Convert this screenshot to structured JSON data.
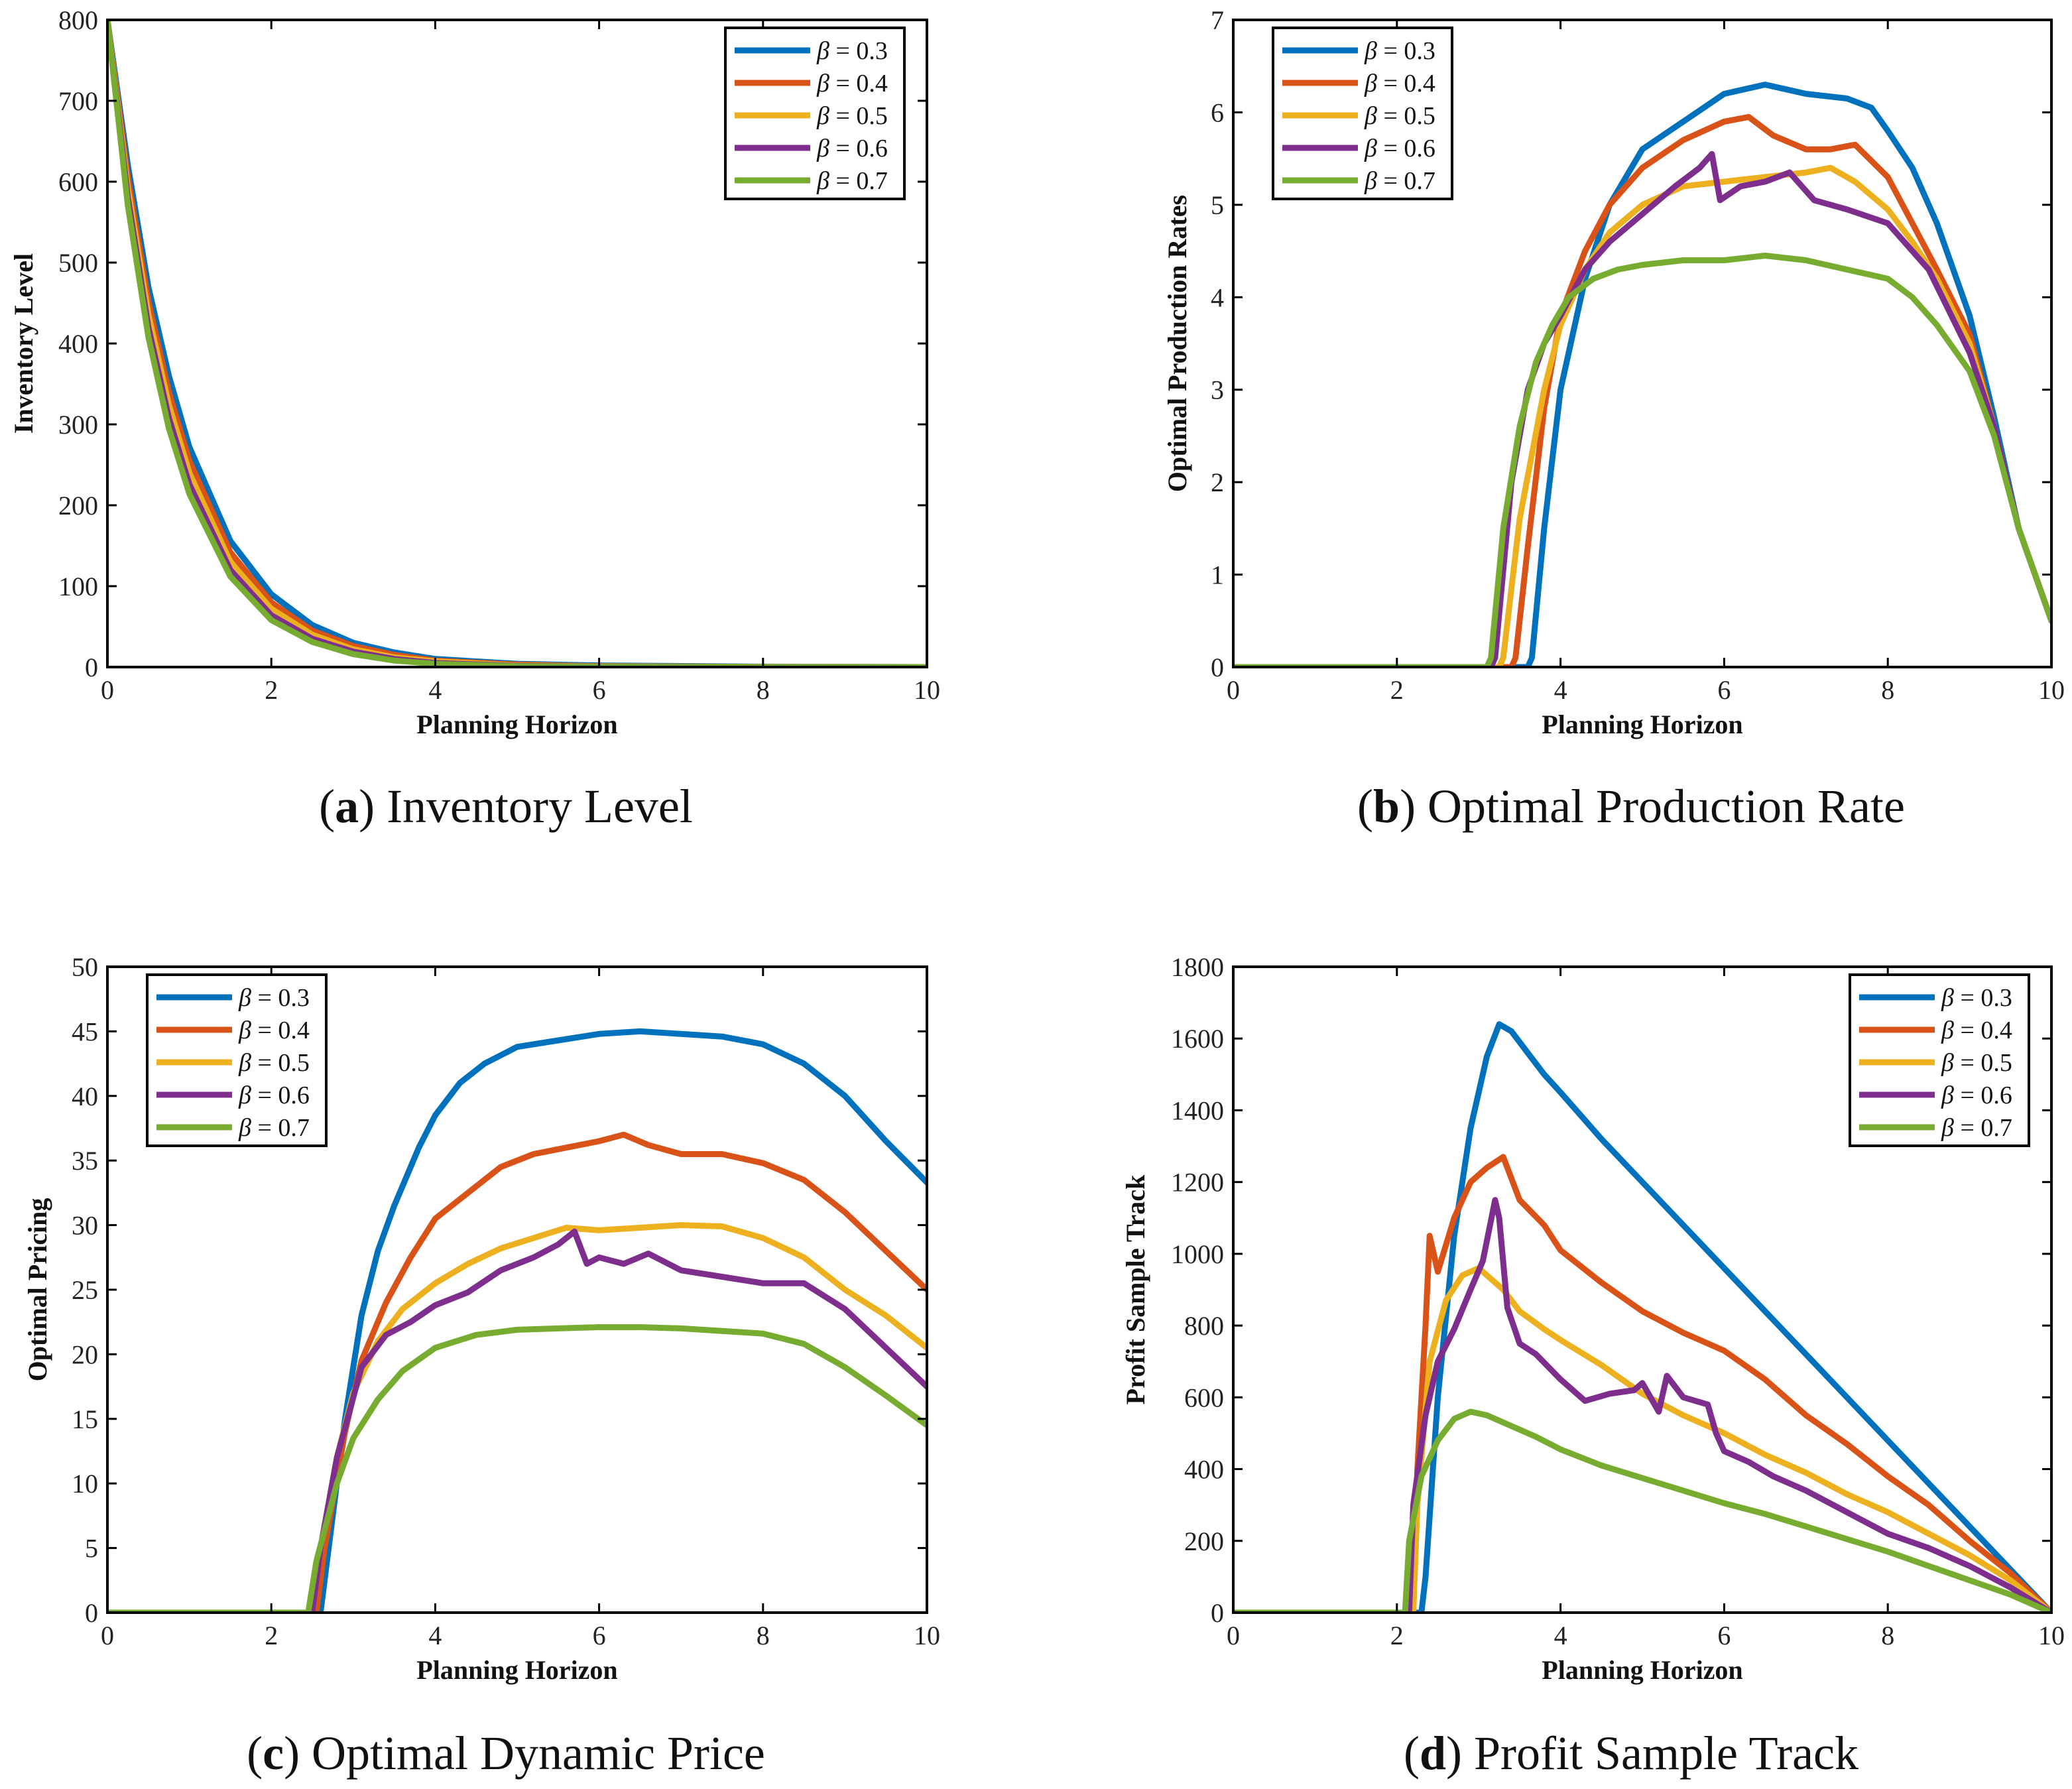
{
  "figure": {
    "legend_labels": [
      "β = 0.3",
      "β = 0.4",
      "β = 0.5",
      "β = 0.6",
      "β = 0.7"
    ],
    "legend_symbol": "β",
    "series_colors": [
      "#0072BD",
      "#D95319",
      "#EDB120",
      "#7E2F8E",
      "#77AC30"
    ]
  },
  "chart_data": [
    {
      "id": "a",
      "type": "line",
      "caption_letter": "a",
      "caption_text": "Inventory Level",
      "xlabel": "Planning Horizon",
      "ylabel": "Inventory Level",
      "xlim": [
        0,
        10
      ],
      "ylim": [
        0,
        800
      ],
      "xticks": [
        0,
        2,
        4,
        6,
        8,
        10
      ],
      "yticks": [
        0,
        100,
        200,
        300,
        400,
        500,
        600,
        700,
        800
      ],
      "legend_position": "top-right",
      "series": [
        {
          "name": "β = 0.3",
          "x": [
            0,
            0.25,
            0.5,
            0.75,
            1,
            1.5,
            2,
            2.5,
            3,
            3.5,
            4,
            5,
            6,
            8,
            10
          ],
          "y": [
            800,
            620,
            470,
            360,
            272,
            156,
            90,
            52,
            30,
            18,
            10,
            4,
            2,
            0.5,
            0
          ]
        },
        {
          "name": "β = 0.4",
          "x": [
            0,
            0.25,
            0.5,
            0.75,
            1,
            1.5,
            2,
            2.5,
            3,
            3.5,
            4,
            5,
            6,
            8,
            10
          ],
          "y": [
            800,
            605,
            452,
            340,
            255,
            142,
            80,
            45,
            26,
            15,
            8,
            3,
            1,
            0.3,
            0
          ]
        },
        {
          "name": "β = 0.5",
          "x": [
            0,
            0.25,
            0.5,
            0.75,
            1,
            1.5,
            2,
            2.5,
            3,
            3.5,
            4,
            5,
            6,
            8,
            10
          ],
          "y": [
            800,
            592,
            436,
            324,
            240,
            130,
            72,
            40,
            22,
            12,
            7,
            2,
            1,
            0.2,
            0
          ]
        },
        {
          "name": "β = 0.6",
          "x": [
            0,
            0.25,
            0.5,
            0.75,
            1,
            1.5,
            2,
            2.5,
            3,
            3.5,
            4,
            5,
            6,
            8,
            10
          ],
          "y": [
            800,
            580,
            420,
            308,
            226,
            120,
            64,
            35,
            19,
            10,
            5,
            1.5,
            0.5,
            0.1,
            0
          ]
        },
        {
          "name": "β = 0.7",
          "x": [
            0,
            0.25,
            0.5,
            0.75,
            1,
            1.5,
            2,
            2.5,
            3,
            3.5,
            4,
            5,
            6,
            8,
            10
          ],
          "y": [
            800,
            570,
            408,
            295,
            214,
            112,
            58,
            31,
            16,
            8,
            4,
            1,
            0.3,
            0.1,
            0
          ]
        }
      ]
    },
    {
      "id": "b",
      "type": "line",
      "caption_letter": "b",
      "caption_text": "Optimal Production Rate",
      "xlabel": "Planning Horizon",
      "ylabel": "Optimal Production Rates",
      "xlim": [
        0,
        10
      ],
      "ylim": [
        0,
        7
      ],
      "xticks": [
        0,
        2,
        4,
        6,
        8,
        10
      ],
      "yticks": [
        0,
        1,
        2,
        3,
        4,
        5,
        6,
        7
      ],
      "legend_position": "top-left",
      "series": [
        {
          "name": "β = 0.3",
          "x": [
            0,
            3.6,
            3.65,
            3.8,
            4.0,
            4.3,
            4.6,
            5.0,
            5.5,
            6.0,
            6.5,
            7.0,
            7.5,
            7.8,
            8.0,
            8.3,
            8.6,
            9.0,
            9.3,
            9.6,
            10.0
          ],
          "y": [
            0,
            0,
            0.1,
            1.5,
            3.0,
            4.2,
            5.0,
            5.6,
            5.9,
            6.2,
            6.3,
            6.2,
            6.15,
            6.05,
            5.8,
            5.4,
            4.8,
            3.8,
            2.7,
            1.5,
            0.5
          ]
        },
        {
          "name": "β = 0.4",
          "x": [
            0,
            3.4,
            3.45,
            3.6,
            3.8,
            4.0,
            4.3,
            4.6,
            5.0,
            5.5,
            6.0,
            6.3,
            6.6,
            7.0,
            7.3,
            7.6,
            8.0,
            8.3,
            8.6,
            9.0,
            9.3,
            9.6,
            10.0
          ],
          "y": [
            0,
            0,
            0.1,
            1.3,
            2.8,
            3.8,
            4.5,
            5.0,
            5.4,
            5.7,
            5.9,
            5.95,
            5.75,
            5.6,
            5.6,
            5.65,
            5.3,
            4.8,
            4.3,
            3.6,
            2.6,
            1.5,
            0.5
          ]
        },
        {
          "name": "β = 0.5",
          "x": [
            0,
            3.25,
            3.3,
            3.5,
            3.8,
            4.0,
            4.3,
            4.6,
            5.0,
            5.5,
            6.0,
            6.5,
            7.0,
            7.3,
            7.6,
            8.0,
            8.3,
            8.6,
            9.0,
            9.3,
            9.6,
            10.0
          ],
          "y": [
            0,
            0,
            0.1,
            1.6,
            3.0,
            3.7,
            4.3,
            4.7,
            5.0,
            5.2,
            5.25,
            5.3,
            5.35,
            5.4,
            5.25,
            4.95,
            4.6,
            4.2,
            3.5,
            2.6,
            1.5,
            0.5
          ]
        },
        {
          "name": "β = 0.6",
          "x": [
            0,
            3.15,
            3.2,
            3.4,
            3.6,
            3.8,
            4.0,
            4.3,
            4.6,
            5.0,
            5.4,
            5.7,
            5.85,
            5.95,
            6.2,
            6.5,
            6.8,
            7.1,
            7.5,
            8.0,
            8.5,
            9.0,
            9.3,
            9.6,
            10.0
          ],
          "y": [
            0,
            0,
            0.1,
            2.0,
            3.0,
            3.5,
            3.8,
            4.3,
            4.6,
            4.9,
            5.2,
            5.4,
            5.55,
            5.05,
            5.2,
            5.25,
            5.35,
            5.05,
            4.95,
            4.8,
            4.3,
            3.4,
            2.6,
            1.5,
            0.5
          ]
        },
        {
          "name": "β = 0.7",
          "x": [
            0,
            3.1,
            3.15,
            3.3,
            3.5,
            3.7,
            3.9,
            4.1,
            4.4,
            4.7,
            5.0,
            5.5,
            6.0,
            6.5,
            7.0,
            7.5,
            8.0,
            8.3,
            8.6,
            9.0,
            9.3,
            9.6,
            10.0
          ],
          "y": [
            0,
            0,
            0.1,
            1.5,
            2.6,
            3.3,
            3.7,
            4.0,
            4.2,
            4.3,
            4.35,
            4.4,
            4.4,
            4.45,
            4.4,
            4.3,
            4.2,
            4.0,
            3.7,
            3.2,
            2.5,
            1.5,
            0.5
          ]
        }
      ]
    },
    {
      "id": "c",
      "type": "line",
      "caption_letter": "c",
      "caption_text": "Optimal Dynamic Price",
      "xlabel": "Planning Horizon",
      "ylabel": "Optimal Pricing",
      "xlim": [
        0,
        10
      ],
      "ylim": [
        0,
        50
      ],
      "xticks": [
        0,
        2,
        4,
        6,
        8,
        10
      ],
      "yticks": [
        0,
        5,
        10,
        15,
        20,
        25,
        30,
        35,
        40,
        45,
        50
      ],
      "legend_position": "top-left",
      "series": [
        {
          "name": "β = 0.3",
          "x": [
            0,
            2.6,
            2.7,
            2.9,
            3.1,
            3.3,
            3.5,
            3.8,
            4.0,
            4.3,
            4.6,
            5.0,
            5.5,
            6.0,
            6.5,
            7.0,
            7.5,
            8.0,
            8.5,
            9.0,
            9.5,
            10.0
          ],
          "y": [
            0,
            0,
            5,
            15,
            23,
            28,
            31.5,
            36,
            38.5,
            41,
            42.5,
            43.8,
            44.3,
            44.8,
            45.0,
            44.8,
            44.6,
            44.0,
            42.5,
            40.0,
            36.5,
            33.3
          ]
        },
        {
          "name": "β = 0.4",
          "x": [
            0,
            2.55,
            2.65,
            2.9,
            3.1,
            3.4,
            3.7,
            4.0,
            4.4,
            4.8,
            5.2,
            5.6,
            6.0,
            6.3,
            6.6,
            7.0,
            7.5,
            8.0,
            8.5,
            9.0,
            9.5,
            10.0
          ],
          "y": [
            0,
            0,
            5,
            14,
            19.5,
            24,
            27.5,
            30.5,
            32.5,
            34.5,
            35.5,
            36.0,
            36.5,
            37.0,
            36.2,
            35.5,
            35.5,
            34.8,
            33.5,
            31.0,
            28.0,
            25.0
          ]
        },
        {
          "name": "β = 0.5",
          "x": [
            0,
            2.5,
            2.6,
            2.8,
            3.0,
            3.3,
            3.6,
            4.0,
            4.4,
            4.8,
            5.2,
            5.6,
            6.0,
            6.5,
            7.0,
            7.5,
            8.0,
            8.5,
            9.0,
            9.5,
            10.0
          ],
          "y": [
            0,
            0,
            5,
            12,
            17,
            21,
            23.5,
            25.5,
            27,
            28.2,
            29,
            29.8,
            29.6,
            29.8,
            30.0,
            29.9,
            29.0,
            27.5,
            25.0,
            23.0,
            20.5
          ]
        },
        {
          "name": "β = 0.6",
          "x": [
            0,
            2.5,
            2.6,
            2.8,
            3.1,
            3.4,
            3.7,
            4.0,
            4.4,
            4.8,
            5.2,
            5.5,
            5.7,
            5.85,
            6.0,
            6.3,
            6.6,
            7.0,
            7.5,
            8.0,
            8.5,
            9.0,
            9.5,
            10.0
          ],
          "y": [
            0,
            0,
            5,
            12,
            19,
            21.5,
            22.5,
            23.8,
            24.8,
            26.5,
            27.5,
            28.5,
            29.5,
            27.0,
            27.5,
            27.0,
            27.8,
            26.5,
            26.0,
            25.5,
            25.5,
            23.5,
            20.5,
            17.5
          ]
        },
        {
          "name": "β = 0.7",
          "x": [
            0,
            2.45,
            2.55,
            2.8,
            3.0,
            3.3,
            3.6,
            4.0,
            4.5,
            5.0,
            5.5,
            6.0,
            6.5,
            7.0,
            7.5,
            8.0,
            8.5,
            9.0,
            9.5,
            10.0
          ],
          "y": [
            0,
            0,
            4,
            10,
            13.5,
            16.5,
            18.7,
            20.5,
            21.5,
            21.9,
            22.0,
            22.1,
            22.1,
            22.0,
            21.8,
            21.6,
            20.8,
            19.0,
            16.8,
            14.5
          ]
        }
      ]
    },
    {
      "id": "d",
      "type": "line",
      "caption_letter": "d",
      "caption_text": "Profit Sample Track",
      "xlabel": "Planning Horizon",
      "ylabel": "Profit Sample Track",
      "xlim": [
        0,
        10
      ],
      "ylim": [
        0,
        1800
      ],
      "xticks": [
        0,
        2,
        4,
        6,
        8,
        10
      ],
      "yticks": [
        0,
        200,
        400,
        600,
        800,
        1000,
        1200,
        1400,
        1600,
        1800
      ],
      "legend_position": "top-right",
      "series": [
        {
          "name": "β = 0.3",
          "x": [
            0,
            2.3,
            2.35,
            2.5,
            2.7,
            2.9,
            3.1,
            3.25,
            3.4,
            3.6,
            3.8,
            4.0,
            4.5,
            5.0,
            5.5,
            6.0,
            6.5,
            7.0,
            7.5,
            8.0,
            8.5,
            9.0,
            9.5,
            10.0
          ],
          "y": [
            0,
            0,
            100,
            600,
            1050,
            1350,
            1550,
            1640,
            1620,
            1560,
            1500,
            1450,
            1320,
            1200,
            1080,
            960,
            840,
            720,
            600,
            480,
            360,
            240,
            120,
            0
          ]
        },
        {
          "name": "β = 0.4",
          "x": [
            0,
            2.2,
            2.25,
            2.35,
            2.4,
            2.5,
            2.7,
            2.9,
            3.1,
            3.3,
            3.5,
            3.8,
            4.0,
            4.5,
            5.0,
            5.5,
            6.0,
            6.5,
            7.0,
            7.5,
            8.0,
            8.5,
            9.0,
            9.5,
            10.0
          ],
          "y": [
            0,
            0,
            400,
            800,
            1050,
            950,
            1100,
            1200,
            1240,
            1270,
            1150,
            1080,
            1010,
            920,
            840,
            780,
            730,
            650,
            550,
            470,
            380,
            300,
            200,
            110,
            0
          ]
        },
        {
          "name": "β = 0.5",
          "x": [
            0,
            2.2,
            2.25,
            2.4,
            2.6,
            2.8,
            3.0,
            3.3,
            3.5,
            3.8,
            4.0,
            4.5,
            5.0,
            5.5,
            6.0,
            6.5,
            7.0,
            7.5,
            8.0,
            8.5,
            9.0,
            9.5,
            10.0
          ],
          "y": [
            0,
            0,
            300,
            700,
            870,
            940,
            960,
            900,
            840,
            790,
            760,
            690,
            610,
            550,
            500,
            440,
            390,
            330,
            280,
            220,
            160,
            90,
            0
          ]
        },
        {
          "name": "β = 0.6",
          "x": [
            0,
            2.15,
            2.2,
            2.35,
            2.5,
            2.7,
            2.9,
            3.05,
            3.2,
            3.25,
            3.35,
            3.5,
            3.7,
            4.0,
            4.3,
            4.6,
            4.9,
            5.0,
            5.2,
            5.3,
            5.5,
            5.8,
            5.9,
            6.0,
            6.3,
            6.6,
            7.0,
            7.5,
            8.0,
            8.5,
            9.0,
            9.5,
            10.0
          ],
          "y": [
            0,
            0,
            300,
            550,
            700,
            790,
            900,
            980,
            1150,
            1100,
            850,
            750,
            720,
            650,
            590,
            610,
            620,
            640,
            560,
            660,
            600,
            580,
            500,
            450,
            420,
            380,
            340,
            280,
            220,
            180,
            130,
            70,
            0
          ]
        },
        {
          "name": "β = 0.7",
          "x": [
            0,
            2.1,
            2.15,
            2.3,
            2.5,
            2.7,
            2.9,
            3.1,
            3.4,
            3.7,
            4.0,
            4.5,
            5.0,
            5.5,
            6.0,
            6.5,
            7.0,
            7.5,
            8.0,
            8.5,
            9.0,
            9.5,
            10.0
          ],
          "y": [
            0,
            0,
            200,
            380,
            480,
            540,
            560,
            550,
            520,
            490,
            455,
            410,
            375,
            340,
            305,
            275,
            240,
            205,
            170,
            130,
            90,
            50,
            0
          ]
        }
      ]
    }
  ]
}
